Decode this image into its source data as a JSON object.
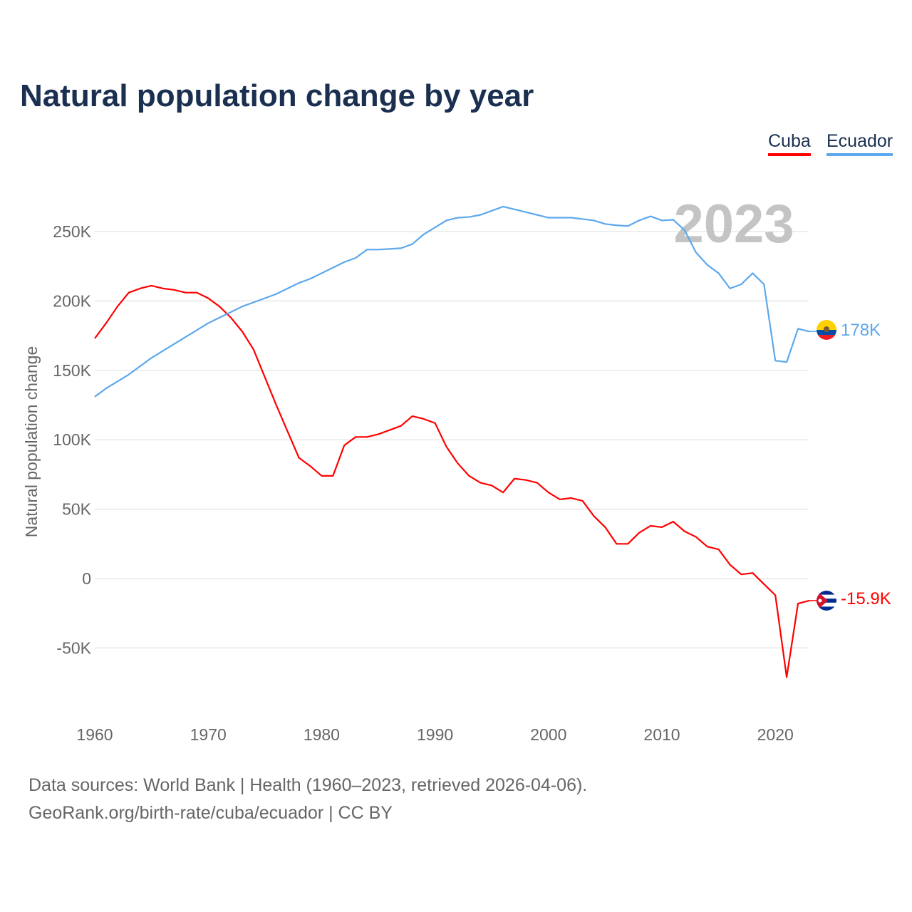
{
  "title": "Natural population change by year",
  "legend": {
    "cuba": "Cuba",
    "ecuador": "Ecuador"
  },
  "year_label": "2023",
  "end_labels": {
    "cuba": "-15.9K",
    "ecuador": "178K"
  },
  "footer": {
    "line1": "Data sources: World Bank | Health (1960–2023, retrieved 2026-04-06).",
    "line2": "GeoRank.org/birth-rate/cuba/ecuador | CC BY"
  },
  "chart_data": {
    "type": "line",
    "title": "Natural population change by year",
    "xlabel": "",
    "ylabel": "Natural population change",
    "x_ticks": [
      1960,
      1970,
      1980,
      1990,
      2000,
      2010,
      2020
    ],
    "y_ticks": [
      -50000,
      0,
      50000,
      100000,
      150000,
      200000,
      250000
    ],
    "y_tick_labels": [
      "-50K",
      "0",
      "50K",
      "100K",
      "150K",
      "200K",
      "250K"
    ],
    "x": [
      1960,
      1961,
      1962,
      1963,
      1964,
      1965,
      1966,
      1967,
      1968,
      1969,
      1970,
      1971,
      1972,
      1973,
      1974,
      1975,
      1976,
      1977,
      1978,
      1979,
      1980,
      1981,
      1982,
      1983,
      1984,
      1985,
      1986,
      1987,
      1988,
      1989,
      1990,
      1991,
      1992,
      1993,
      1994,
      1995,
      1996,
      1997,
      1998,
      1999,
      2000,
      2001,
      2002,
      2003,
      2004,
      2005,
      2006,
      2007,
      2008,
      2009,
      2010,
      2011,
      2012,
      2013,
      2014,
      2015,
      2016,
      2017,
      2018,
      2019,
      2020,
      2021,
      2022,
      2023
    ],
    "series": [
      {
        "name": "Cuba",
        "color": "#ff0000",
        "values": [
          173,
          184,
          196,
          206,
          209,
          211,
          209,
          208,
          206,
          206,
          202,
          196,
          188,
          178,
          165,
          145,
          125,
          106,
          87,
          81,
          74,
          74,
          96,
          102,
          102,
          104,
          107,
          110,
          117,
          115,
          112,
          95,
          83,
          74,
          69,
          67,
          62,
          72,
          71,
          69,
          62,
          57,
          58,
          56,
          45,
          37,
          25,
          25,
          33,
          38,
          37,
          41,
          34,
          30,
          23,
          21,
          10,
          3,
          4,
          -4,
          -12,
          -71,
          -18,
          -15.9
        ]
      },
      {
        "name": "Ecuador",
        "color": "#5ca8ec",
        "values": [
          131,
          137,
          142,
          147,
          153,
          159,
          164,
          169,
          174,
          179,
          184,
          188,
          192,
          196,
          199,
          202,
          205,
          209,
          213,
          216,
          220,
          224,
          228,
          231,
          237,
          237,
          237.5,
          238,
          241,
          248,
          253,
          258,
          260,
          260.5,
          262,
          265,
          268,
          266,
          264,
          262,
          260,
          260,
          260,
          259,
          258,
          255.5,
          254.5,
          254,
          258,
          261,
          258,
          258.5,
          251,
          235,
          226,
          220,
          209,
          212,
          220,
          212,
          157,
          156,
          180,
          178
        ]
      }
    ],
    "value_unit": "thousands",
    "legend_position": "top-right",
    "grid": true
  }
}
